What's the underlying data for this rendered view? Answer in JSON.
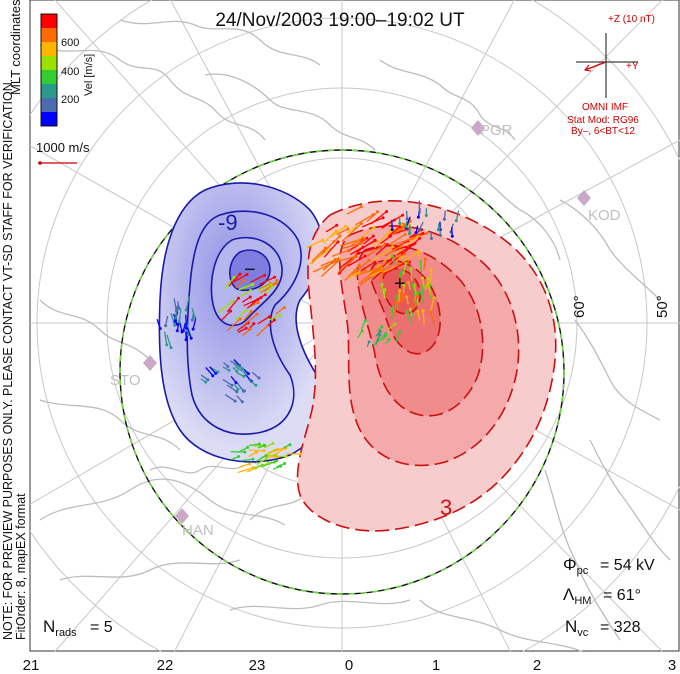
{
  "title": "24/Nov/2003 19:00–19:02 UT",
  "colorbar": {
    "unit_label": "Vel [m/s]",
    "ticks": [
      "600",
      "400",
      "200"
    ],
    "colors": [
      "#ff0000",
      "#ff6a00",
      "#ffb400",
      "#9be000",
      "#33cc33",
      "#2a9a8a",
      "#4c6ab0",
      "#0000ff"
    ]
  },
  "coord_label": "MLT coordinates",
  "vel_scale_label": "1000 m/s",
  "side_note_1": "NOTE: FOR PREVIEW PURPOSES ONLY. PLEASE CONTACT VT-SD STAFF FOR VERIFICATION.",
  "side_note_2": "FitOrder: 8, mapEX format",
  "imf": {
    "z_label": "+Z (10 nT)",
    "y_label": "+Y",
    "source": "OMNI IMF",
    "stat_mod": "Stat Mod: RG96",
    "by_bt": "By–, 6<BT<12"
  },
  "stations": [
    "PGR",
    "KOD",
    "STO",
    "HAN"
  ],
  "latitude_labels": [
    "60°",
    "50°"
  ],
  "contour_labels": [
    "-9",
    "3"
  ],
  "extrema": {
    "min_symbol": "−",
    "max_symbol": "+"
  },
  "stats": {
    "phi_pc": "= 54 kV",
    "lambda_hm": "= 61°",
    "n_vc": "= 328",
    "n_rads": "= 5"
  },
  "mlt_labels": [
    "21",
    "22",
    "23",
    "0",
    "1",
    "2",
    "3"
  ],
  "colors": {
    "negative_cell": "#1a1aa8",
    "positive_cell": "#cc1010",
    "heppner_maynard": "#66dd33",
    "coast": "#bfbfbf",
    "imf_arrow": "#cc0000"
  }
}
